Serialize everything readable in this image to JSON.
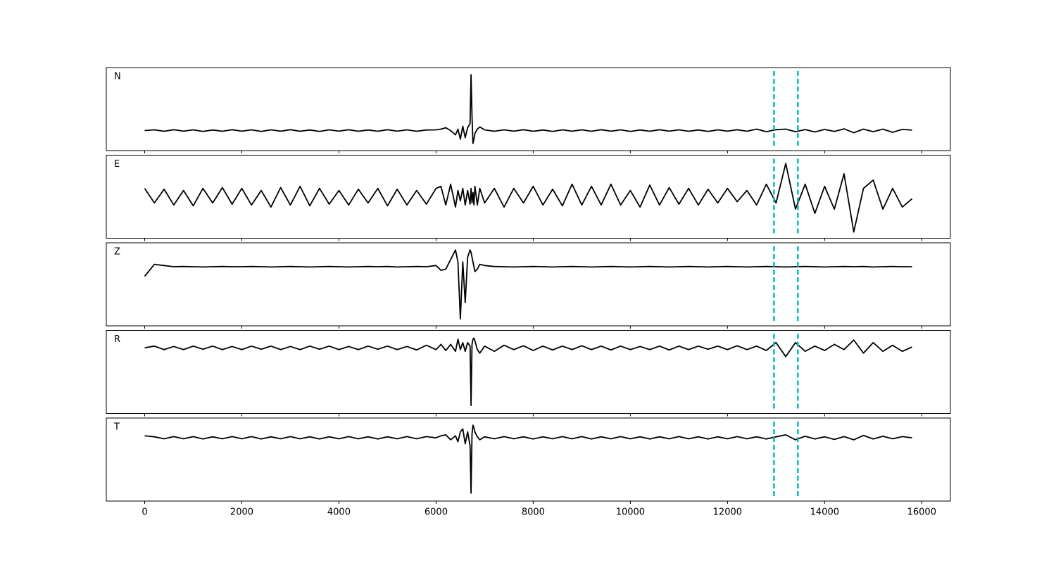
{
  "chart_data": {
    "type": "line",
    "xlim": [
      -790,
      16590
    ],
    "xticks": [
      0,
      2000,
      4000,
      6000,
      8000,
      10000,
      12000,
      14000,
      16000
    ],
    "line_color": "#000000",
    "markers": [
      12957,
      13449
    ],
    "marker_color": "#00bfbf",
    "marker_style": "dashed",
    "x": [
      0,
      200,
      400,
      600,
      800,
      1000,
      1200,
      1400,
      1600,
      1800,
      2000,
      2200,
      2400,
      2600,
      2800,
      3000,
      3200,
      3400,
      3600,
      3800,
      4000,
      4200,
      4400,
      4600,
      4800,
      5000,
      5200,
      5400,
      5600,
      5800,
      6000,
      6100,
      6200,
      6300,
      6400,
      6450,
      6500,
      6550,
      6600,
      6650,
      6700,
      6720,
      6740,
      6760,
      6780,
      6800,
      6850,
      6900,
      7000,
      7200,
      7400,
      7600,
      7800,
      8000,
      8200,
      8400,
      8600,
      8800,
      9000,
      9200,
      9400,
      9600,
      9800,
      10000,
      10200,
      10400,
      10600,
      10800,
      11000,
      11200,
      11400,
      11600,
      11800,
      12000,
      12200,
      12400,
      12600,
      12800,
      13000,
      13200,
      13400,
      13600,
      13800,
      14000,
      14200,
      14400,
      14600,
      14800,
      15000,
      15200,
      15400,
      15600,
      15800
    ],
    "series": [
      {
        "name": "N",
        "ylim": [
          -1.4,
          4.4
        ],
        "values": [
          0,
          0.05,
          -0.05,
          0.06,
          -0.04,
          0.05,
          -0.06,
          0.04,
          -0.05,
          0.06,
          -0.04,
          0.05,
          -0.06,
          0.05,
          -0.04,
          0.06,
          -0.05,
          0.04,
          -0.06,
          0.05,
          -0.04,
          0.06,
          -0.05,
          0.04,
          -0.05,
          0.06,
          -0.04,
          0.05,
          -0.05,
          0.04,
          0.05,
          0.1,
          0.2,
          0.0,
          -0.3,
          0.1,
          -0.6,
          0.3,
          -0.5,
          0.2,
          0.5,
          3.9,
          1.0,
          -0.9,
          -0.6,
          -0.2,
          0.1,
          0.25,
          0.05,
          -0.05,
          0.05,
          -0.04,
          0.06,
          -0.05,
          0.04,
          -0.06,
          0.05,
          -0.04,
          0.05,
          -0.05,
          0.06,
          -0.04,
          0.05,
          -0.06,
          0.04,
          -0.05,
          0.06,
          -0.04,
          0.05,
          -0.05,
          0.04,
          -0.06,
          0.05,
          -0.04,
          0.06,
          -0.05,
          0.1,
          -0.08,
          0.06,
          0.1,
          -0.08,
          0.07,
          -0.1,
          0.08,
          -0.06,
          0.12,
          -0.15,
          0.1,
          -0.08,
          0.1,
          -0.12,
          0.08,
          0.03
        ]
      },
      {
        "name": "E",
        "ylim": [
          -1,
          1
        ],
        "values": [
          0.2,
          -0.15,
          0.18,
          -0.2,
          0.15,
          -0.22,
          0.2,
          -0.15,
          0.22,
          -0.18,
          0.2,
          -0.2,
          0.15,
          -0.25,
          0.22,
          -0.2,
          0.25,
          -0.22,
          0.2,
          -0.18,
          0.15,
          -0.2,
          0.18,
          -0.15,
          0.2,
          -0.22,
          0.18,
          -0.2,
          0.15,
          -0.18,
          0.2,
          0.25,
          -0.2,
          0.3,
          -0.25,
          0.15,
          -0.1,
          0.2,
          -0.2,
          0.15,
          -0.18,
          0.2,
          -0.15,
          0.1,
          -0.2,
          0.25,
          -0.2,
          0.2,
          -0.15,
          0.2,
          -0.25,
          0.2,
          -0.15,
          0.25,
          -0.2,
          0.18,
          -0.22,
          0.3,
          -0.2,
          0.25,
          -0.2,
          0.3,
          -0.2,
          0.15,
          -0.25,
          0.28,
          -0.2,
          0.22,
          -0.18,
          0.2,
          -0.2,
          0.18,
          -0.15,
          0.2,
          -0.12,
          0.15,
          -0.2,
          0.3,
          -0.15,
          0.8,
          -0.3,
          0.3,
          -0.4,
          0.25,
          -0.3,
          0.55,
          -0.85,
          0.2,
          0.4,
          -0.3,
          0.2,
          -0.25,
          -0.05
        ]
      },
      {
        "name": "Z",
        "ylim": [
          -2.47,
          1
        ],
        "values": [
          -0.4,
          0.1,
          0.05,
          0,
          0.01,
          0,
          -0.01,
          0,
          0.01,
          0,
          0,
          0.01,
          0,
          -0.01,
          0,
          0.01,
          0,
          -0.01,
          0,
          0.01,
          0,
          -0.01,
          0,
          0.01,
          0,
          0.01,
          -0.01,
          0,
          0.01,
          0,
          0.05,
          -0.15,
          -0.1,
          0.3,
          0.7,
          0.2,
          -2.18,
          0.2,
          -1.5,
          0.4,
          0.7,
          0.6,
          0.4,
          0.2,
          0,
          -0.2,
          -0.1,
          0.1,
          0.05,
          0.01,
          0,
          -0.01,
          0,
          0.01,
          0,
          -0.01,
          0,
          0.01,
          0,
          -0.01,
          0,
          0.01,
          0,
          -0.01,
          0,
          0.01,
          0,
          -0.01,
          0,
          0.01,
          0,
          -0.01,
          0,
          0.01,
          0,
          -0.01,
          0,
          0.01,
          0,
          -0.01,
          0,
          0.01,
          0,
          -0.01,
          0,
          0.01,
          0,
          0.01,
          -0.01,
          0,
          0.01,
          0,
          0
        ]
      },
      {
        "name": "R",
        "ylim": [
          -3.76,
          1
        ],
        "values": [
          0,
          0.1,
          -0.1,
          0.08,
          -0.1,
          0.1,
          -0.08,
          0.1,
          -0.1,
          0.08,
          -0.1,
          0.1,
          -0.08,
          0.1,
          -0.1,
          0.08,
          -0.1,
          0.1,
          -0.08,
          0.1,
          -0.1,
          0.08,
          -0.1,
          0.1,
          -0.08,
          0.1,
          -0.1,
          0.08,
          -0.12,
          0.15,
          -0.1,
          0.2,
          -0.15,
          0.2,
          -0.2,
          0.5,
          -0.1,
          0.3,
          -0.2,
          0.3,
          0.1,
          -3.3,
          0.2,
          0.5,
          0.56,
          0.4,
          -0.1,
          -0.3,
          0.1,
          -0.2,
          0.15,
          -0.1,
          0.12,
          -0.15,
          0.1,
          -0.12,
          0.1,
          -0.1,
          0.12,
          -0.1,
          0.1,
          -0.12,
          0.1,
          -0.1,
          0.08,
          -0.1,
          0.1,
          -0.12,
          0.1,
          -0.1,
          0.1,
          -0.08,
          0.1,
          -0.1,
          0.12,
          -0.1,
          0.1,
          -0.15,
          0.3,
          -0.5,
          0.3,
          -0.2,
          0.1,
          -0.15,
          0.2,
          -0.1,
          0.45,
          -0.3,
          0.3,
          -0.2,
          0.15,
          -0.2,
          0.05
        ]
      },
      {
        "name": "T",
        "ylim": [
          -3.2,
          1
        ],
        "values": [
          0.1,
          0.05,
          -0.05,
          0.06,
          -0.05,
          0.06,
          -0.06,
          0.05,
          -0.05,
          0.06,
          -0.05,
          0.06,
          -0.06,
          0.05,
          -0.05,
          0.06,
          -0.05,
          0.05,
          -0.06,
          0.05,
          -0.05,
          0.06,
          -0.05,
          0.05,
          -0.06,
          0.05,
          -0.05,
          0.06,
          -0.05,
          0.06,
          0,
          0.1,
          0.15,
          -0.1,
          0.1,
          -0.2,
          0.3,
          0.45,
          -0.3,
          0.3,
          -0.4,
          -2.8,
          0.2,
          0.64,
          0.5,
          0.3,
          0.05,
          -0.1,
          0.05,
          -0.05,
          0.06,
          -0.05,
          0.05,
          -0.06,
          0.05,
          -0.05,
          0.06,
          -0.05,
          0.06,
          -0.06,
          0.05,
          -0.05,
          0.06,
          -0.05,
          0.05,
          -0.06,
          0.05,
          -0.05,
          0.06,
          -0.05,
          0.05,
          -0.06,
          0.05,
          -0.05,
          0.06,
          -0.05,
          0.05,
          -0.06,
          0.05,
          0.15,
          -0.1,
          0.08,
          -0.06,
          0.05,
          -0.08,
          0.06,
          -0.1,
          0.12,
          -0.06,
          0.08,
          -0.05,
          0.06,
          0
        ]
      }
    ]
  }
}
